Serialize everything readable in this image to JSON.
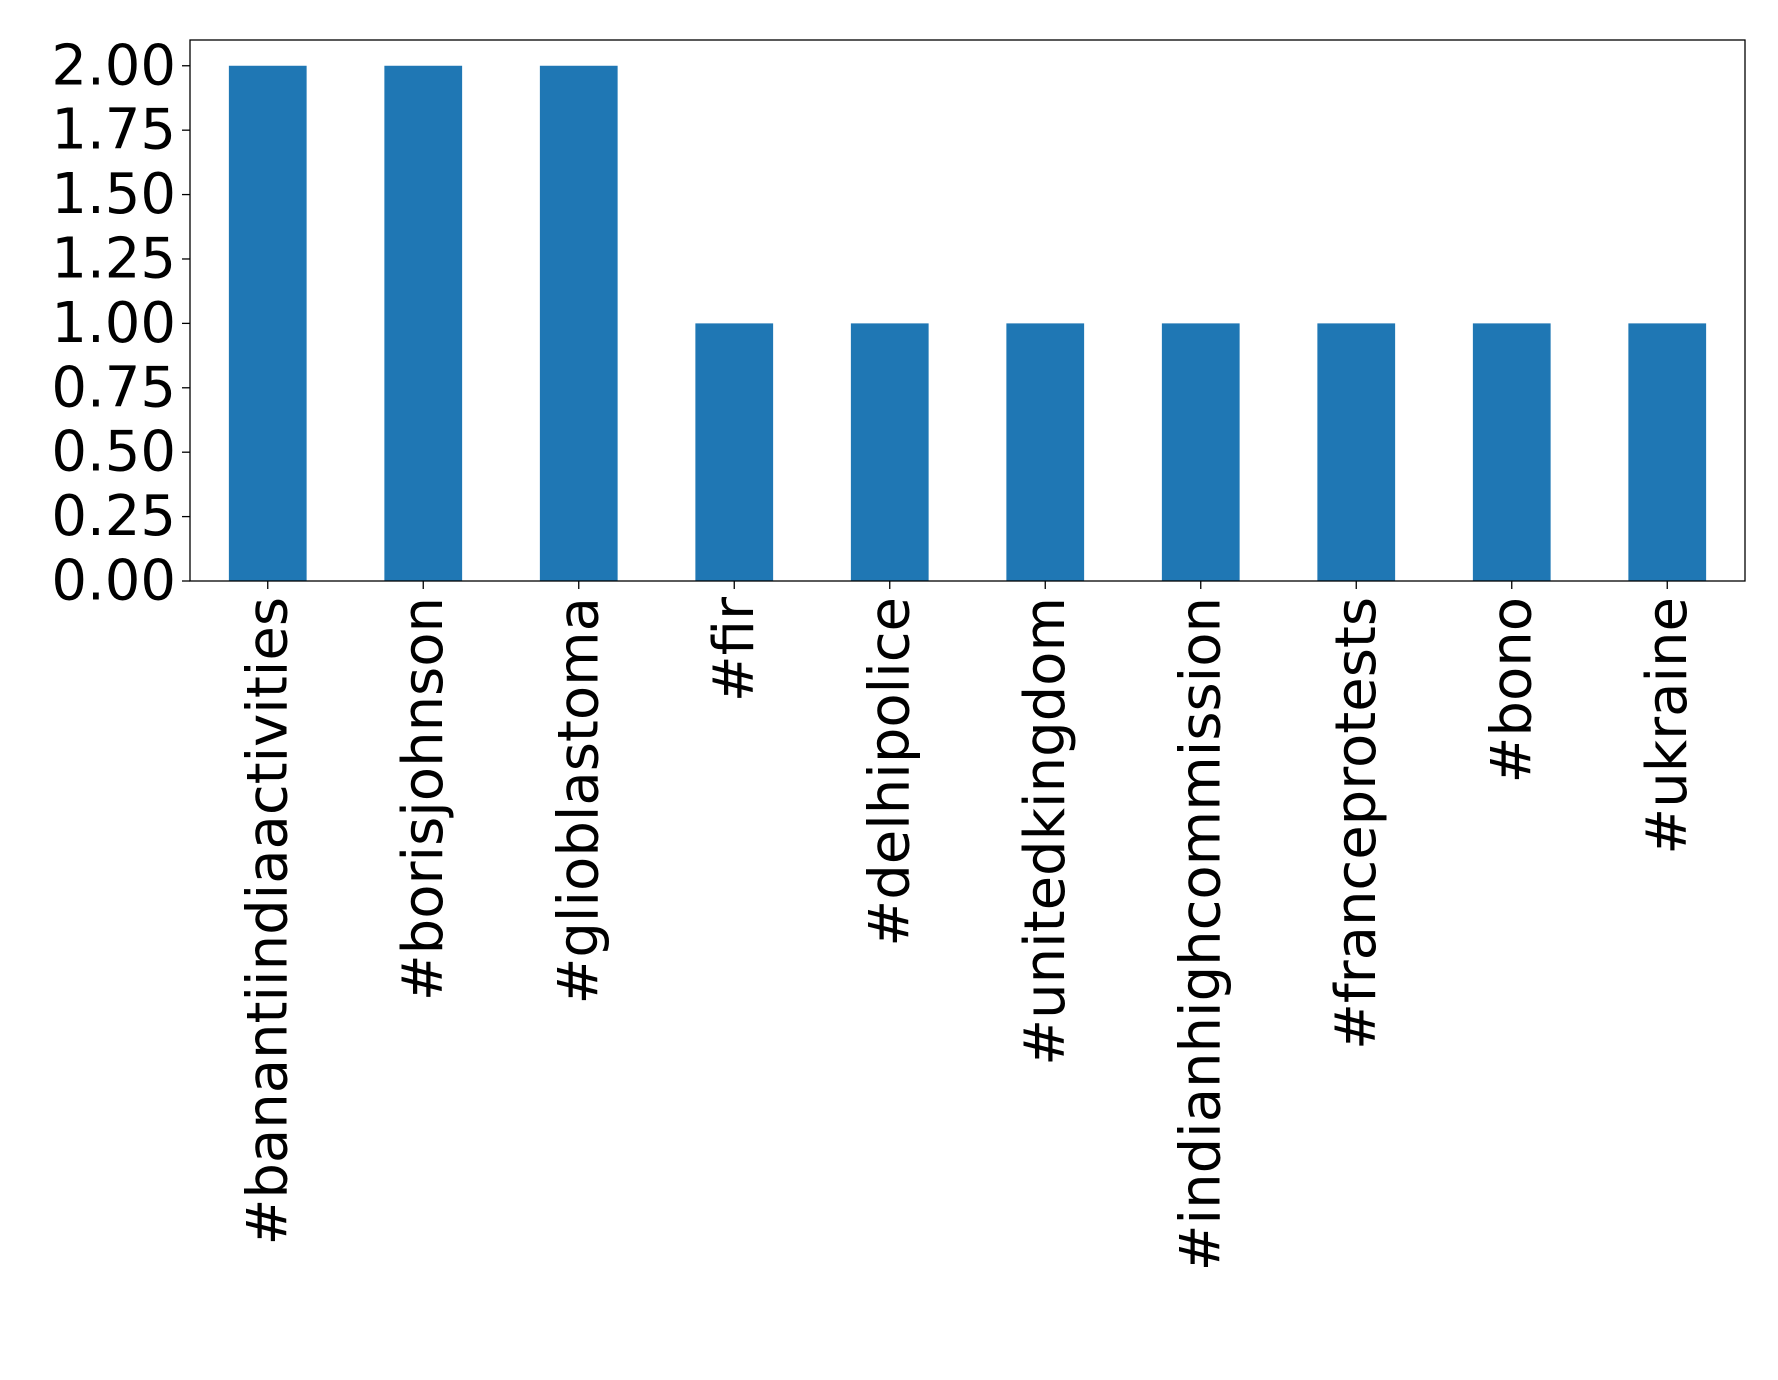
{
  "chart_data": {
    "type": "bar",
    "title": "",
    "xlabel": "",
    "ylabel": "",
    "categories": [
      "#banantiindiaactivities",
      "#borisjohnson",
      "#glioblastoma",
      "#fir",
      "#delhipolice",
      "#unitedkingdom",
      "#indianhighcommission",
      "#franceprotests",
      "#bono",
      "#ukraine"
    ],
    "values": [
      2,
      2,
      2,
      1,
      1,
      1,
      1,
      1,
      1,
      1
    ],
    "ylim": [
      0,
      2.1
    ],
    "yticks": [
      "0.00",
      "0.25",
      "0.50",
      "0.75",
      "1.00",
      "1.25",
      "1.50",
      "1.75",
      "2.00"
    ],
    "bar_color": "#1f77b4",
    "grid": false,
    "legend": "none"
  }
}
